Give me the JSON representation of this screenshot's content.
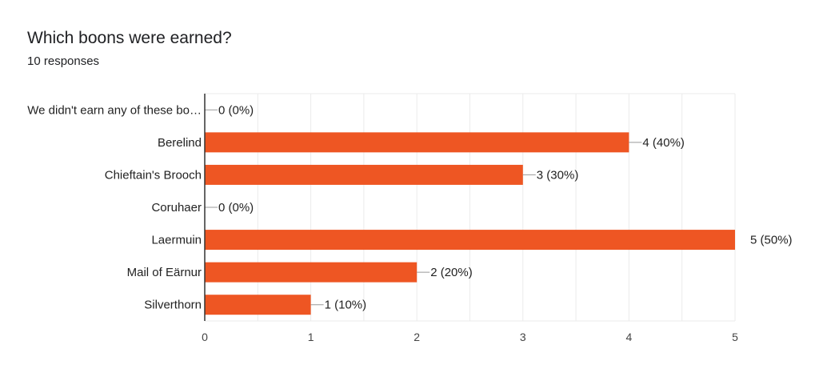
{
  "header": {
    "title": "Which boons were earned?",
    "responses": "10 responses"
  },
  "colors": {
    "bar": "#ee5623",
    "grid": "#ebebeb",
    "axis": "#333333",
    "leader": "#999999"
  },
  "chart_data": {
    "type": "bar",
    "orientation": "horizontal",
    "title": "Which boons were earned?",
    "categories": [
      "We didn't earn any of these bo…",
      "Berelind",
      "Chieftain's Brooch",
      "Coruhaer",
      "Laermuin",
      "Mail of Eärnur",
      "Silverthorn"
    ],
    "values": [
      0,
      4,
      3,
      0,
      5,
      2,
      1
    ],
    "data_labels": [
      "0 (0%)",
      "4 (40%)",
      "3 (30%)",
      "0 (0%)",
      "5 (50%)",
      "2 (20%)",
      "1 (10%)"
    ],
    "xlim": [
      0,
      5
    ],
    "xticks": [
      "0",
      "1",
      "2",
      "3",
      "4",
      "5"
    ],
    "grid": true,
    "xlabel": "",
    "ylabel": ""
  }
}
